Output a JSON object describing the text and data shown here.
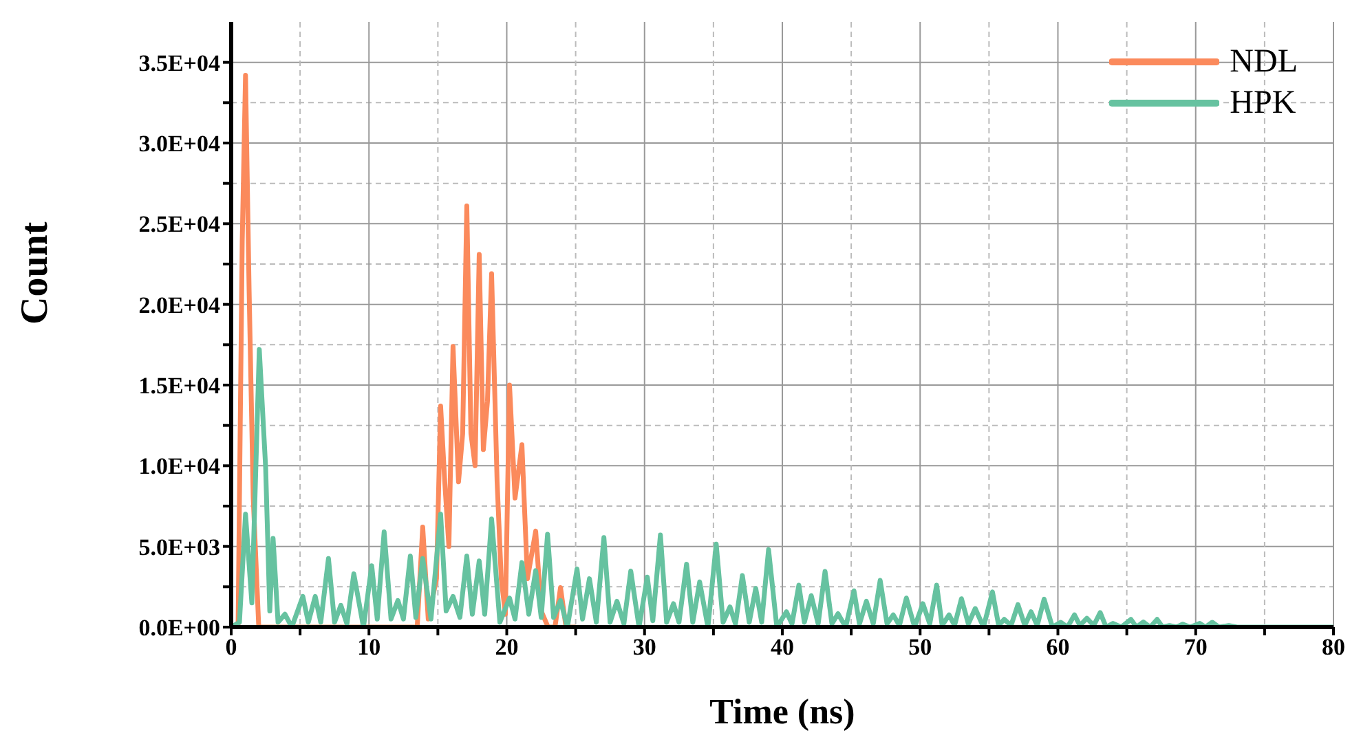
{
  "chart_data": {
    "type": "line",
    "xlabel": "Time (ns)",
    "ylabel": "Count",
    "xlim": [
      0,
      80
    ],
    "xticks": [
      0,
      {
        "value": 5,
        "label": null
      },
      10,
      {
        "value": 15,
        "label": null
      },
      20,
      {
        "value": 25,
        "label": null
      },
      30,
      {
        "value": 35,
        "label": null
      },
      40,
      {
        "value": 45,
        "label": null
      },
      50,
      {
        "value": 55,
        "label": null
      },
      60,
      {
        "value": 65,
        "label": null
      },
      70,
      {
        "value": 75,
        "label": null
      },
      80
    ],
    "ylim": [
      0,
      37500
    ],
    "yticks": [
      {
        "value": 0,
        "label": "0.0E+00"
      },
      {
        "value": 2500,
        "label": null
      },
      {
        "value": 5000,
        "label": "5.0E+03"
      },
      {
        "value": 7500,
        "label": null
      },
      {
        "value": 10000,
        "label": "1.0E+04"
      },
      {
        "value": 12500,
        "label": null
      },
      {
        "value": 15000,
        "label": "1.5E+04"
      },
      {
        "value": 17500,
        "label": null
      },
      {
        "value": 20000,
        "label": "2.0E+04"
      },
      {
        "value": 22500,
        "label": null
      },
      {
        "value": 25000,
        "label": "2.5E+04"
      },
      {
        "value": 27500,
        "label": null
      },
      {
        "value": 30000,
        "label": "3.0E+04"
      },
      {
        "value": 32500,
        "label": null
      },
      {
        "value": 35000,
        "label": "3.5E+04"
      }
    ],
    "grid": true,
    "legend": "top right",
    "marker": "none",
    "line_style": "solid",
    "series": [
      {
        "name": "NDL",
        "color": "#fb8a5c",
        "x": [
          0,
          0.5,
          0.8,
          1.04,
          1.3,
          1.6,
          2.0,
          13.5,
          13.9,
          14.3,
          14.9,
          15.2,
          15.5,
          15.8,
          16.1,
          16.5,
          16.8,
          17.1,
          17.4,
          17.7,
          18.0,
          18.3,
          18.6,
          18.9,
          19.3,
          19.6,
          19.9,
          20.2,
          20.6,
          21.1,
          21.5,
          22.1,
          22.5,
          23.0,
          23.5,
          23.9,
          24.3,
          25
        ],
        "values": [
          0,
          0,
          23900,
          34200,
          20900,
          8000,
          0,
          0,
          6200,
          500,
          3000,
          13700,
          9000,
          5000,
          17400,
          9000,
          12000,
          26100,
          12000,
          10000,
          23100,
          11000,
          14000,
          21900,
          9000,
          3000,
          800,
          15000,
          8000,
          11300,
          3000,
          5950,
          1000,
          0,
          0,
          2450,
          0,
          0
        ]
      },
      {
        "name": "HPK",
        "color": "#66c2a0",
        "x": [
          0,
          0.6,
          1.04,
          1.5,
          2.04,
          2.5,
          2.8,
          3.04,
          3.4,
          3.9,
          4.4,
          5.2,
          5.6,
          6.1,
          6.5,
          7.06,
          7.5,
          7.96,
          8.4,
          8.9,
          9.6,
          10.2,
          10.6,
          11.1,
          11.6,
          12.1,
          12.5,
          13.0,
          13.4,
          13.9,
          14.5,
          15.2,
          15.6,
          16.1,
          16.6,
          17.1,
          17.5,
          18.0,
          18.4,
          18.9,
          19.5,
          20.2,
          20.6,
          21.1,
          21.6,
          22.1,
          22.5,
          22.96,
          23.4,
          23.9,
          24.4,
          25.1,
          25.5,
          26.0,
          26.5,
          27.05,
          27.5,
          28.0,
          28.5,
          29.0,
          29.6,
          30.2,
          30.6,
          31.15,
          31.6,
          32.1,
          32.5,
          33.05,
          33.5,
          34.0,
          34.6,
          35.2,
          35.7,
          36.2,
          36.6,
          37.1,
          37.6,
          38.07,
          38.5,
          39.0,
          39.6,
          40.3,
          40.7,
          41.2,
          41.6,
          42.1,
          42.6,
          43.1,
          43.6,
          44.04,
          44.6,
          45.2,
          45.6,
          46.1,
          46.6,
          47.1,
          47.6,
          48.05,
          48.5,
          49.0,
          49.6,
          50.2,
          50.7,
          51.2,
          51.6,
          52.1,
          52.5,
          53.0,
          53.5,
          54.0,
          54.6,
          55.25,
          55.7,
          56.1,
          56.6,
          57.1,
          57.6,
          58.05,
          58.5,
          59.0,
          59.6,
          60.2,
          60.7,
          61.2,
          61.6,
          62.1,
          62.6,
          63.07,
          63.5,
          64.0,
          64.6,
          65.3,
          65.7,
          66.2,
          66.7,
          67.2,
          67.6,
          68.1,
          68.6,
          69.06,
          69.6,
          70.3,
          70.7,
          71.2,
          71.7,
          72.4,
          73,
          80
        ],
        "values": [
          0,
          300,
          7000,
          1500,
          17200,
          9900,
          1000,
          5500,
          300,
          800,
          0,
          1900,
          300,
          1900,
          300,
          4250,
          300,
          1350,
          200,
          3300,
          0,
          3800,
          500,
          5900,
          500,
          1650,
          500,
          4400,
          600,
          4250,
          500,
          7000,
          1000,
          1900,
          600,
          4400,
          800,
          4100,
          800,
          6700,
          300,
          1800,
          500,
          4000,
          800,
          3500,
          600,
          5750,
          600,
          1650,
          0,
          3600,
          500,
          3000,
          300,
          5550,
          300,
          1600,
          200,
          3470,
          0,
          3100,
          400,
          5710,
          300,
          1450,
          300,
          3900,
          300,
          2800,
          0,
          5150,
          300,
          1250,
          200,
          3200,
          300,
          2400,
          300,
          4800,
          0,
          950,
          200,
          2600,
          300,
          1950,
          200,
          3450,
          200,
          830,
          0,
          2250,
          200,
          1600,
          200,
          2900,
          200,
          760,
          100,
          1800,
          0,
          1450,
          200,
          2600,
          100,
          760,
          100,
          1760,
          200,
          1150,
          0,
          2180,
          100,
          480,
          100,
          1390,
          100,
          950,
          100,
          1730,
          0,
          300,
          0,
          760,
          100,
          550,
          100,
          900,
          0,
          230,
          0,
          480,
          0,
          320,
          0,
          480,
          0,
          100,
          0,
          180,
          0,
          230,
          0,
          300,
          0,
          100,
          0,
          0
        ]
      }
    ]
  }
}
